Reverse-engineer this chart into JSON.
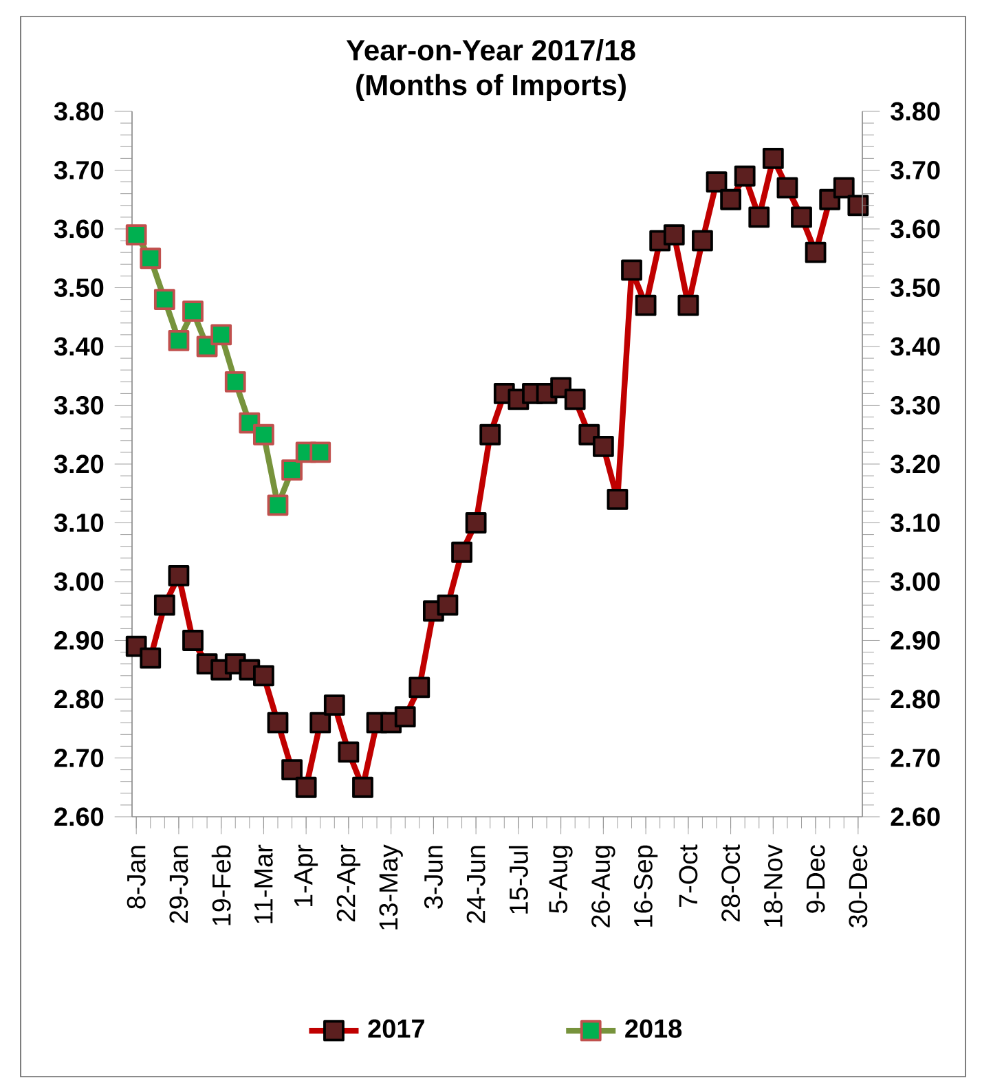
{
  "chart_data": {
    "type": "line",
    "title": "Year-on-Year 2017/18",
    "subtitle": "(Months of Imports)",
    "categories": [
      "8-Jan",
      null,
      null,
      "29-Jan",
      null,
      null,
      "19-Feb",
      null,
      null,
      "11-Mar",
      null,
      null,
      "1-Apr",
      null,
      null,
      "22-Apr",
      null,
      null,
      "13-May",
      null,
      null,
      "3-Jun",
      null,
      null,
      "24-Jun",
      null,
      null,
      "15-Jul",
      null,
      null,
      "5-Aug",
      null,
      null,
      "26-Aug",
      null,
      null,
      "16-Sep",
      null,
      null,
      "7-Oct",
      null,
      null,
      "28-Oct",
      null,
      null,
      "18-Nov",
      null,
      null,
      "9-Dec",
      null,
      null,
      "30-Dec"
    ],
    "series": [
      {
        "name": "2017",
        "color": "#c00000",
        "values": [
          2.89,
          2.87,
          2.96,
          3.01,
          2.9,
          2.86,
          2.85,
          2.86,
          2.85,
          2.84,
          2.76,
          2.68,
          2.65,
          2.76,
          2.79,
          2.71,
          2.65,
          2.76,
          2.76,
          2.77,
          2.82,
          2.95,
          2.96,
          3.05,
          3.1,
          3.25,
          3.32,
          3.31,
          3.32,
          3.32,
          3.33,
          3.31,
          3.25,
          3.23,
          3.14,
          3.53,
          3.47,
          3.58,
          3.59,
          3.47,
          3.58,
          3.68,
          3.65,
          3.69,
          3.62,
          3.72,
          3.67,
          3.62,
          3.56,
          3.65,
          3.67,
          3.64
        ]
      },
      {
        "name": "2018",
        "color": "#77933c",
        "values": [
          3.59,
          3.55,
          3.48,
          3.41,
          3.46,
          3.4,
          3.42,
          3.34,
          3.27,
          3.25,
          3.13,
          3.19,
          3.22,
          3.22,
          null,
          null,
          null,
          null,
          null,
          null,
          null,
          null,
          null,
          null,
          null,
          null,
          null,
          null,
          null,
          null,
          null,
          null,
          null,
          null,
          null,
          null,
          null,
          null,
          null,
          null,
          null,
          null,
          null,
          null,
          null,
          null,
          null,
          null,
          null,
          null,
          null,
          null
        ]
      }
    ],
    "ylim": [
      2.6,
      3.8
    ],
    "yticks": [
      {
        "value": 2.6,
        "label": "2.60"
      },
      {
        "value": 2.7,
        "label": "2.70"
      },
      {
        "value": 2.8,
        "label": "2.80"
      },
      {
        "value": 2.9,
        "label": "2.90"
      },
      {
        "value": 3.0,
        "label": "3.00"
      },
      {
        "value": 3.1,
        "label": "3.10"
      },
      {
        "value": 3.2,
        "label": "3.20"
      },
      {
        "value": 3.3,
        "label": "3.30"
      },
      {
        "value": 3.4,
        "label": "3.40"
      },
      {
        "value": 3.5,
        "label": "3.50"
      },
      {
        "value": 3.6,
        "label": "3.60"
      },
      {
        "value": 3.7,
        "label": "3.70"
      },
      {
        "value": 3.8,
        "label": "3.80"
      }
    ],
    "y2lim": [
      2.6,
      3.8
    ],
    "y2ticks": [
      {
        "value": 2.6,
        "label": "2.60"
      },
      {
        "value": 2.7,
        "label": "2.70"
      },
      {
        "value": 2.8,
        "label": "2.80"
      },
      {
        "value": 2.9,
        "label": "2.90"
      },
      {
        "value": 3.0,
        "label": "3.00"
      },
      {
        "value": 3.1,
        "label": "3.10"
      },
      {
        "value": 3.2,
        "label": "3.20"
      },
      {
        "value": 3.3,
        "label": "3.30"
      },
      {
        "value": 3.4,
        "label": "3.40"
      },
      {
        "value": 3.5,
        "label": "3.50"
      },
      {
        "value": 3.6,
        "label": "3.60"
      },
      {
        "value": 3.7,
        "label": "3.70"
      },
      {
        "value": 3.8,
        "label": "3.80"
      }
    ],
    "grid": false,
    "legend": "bottom",
    "marker": "square",
    "line_style": "solid"
  }
}
